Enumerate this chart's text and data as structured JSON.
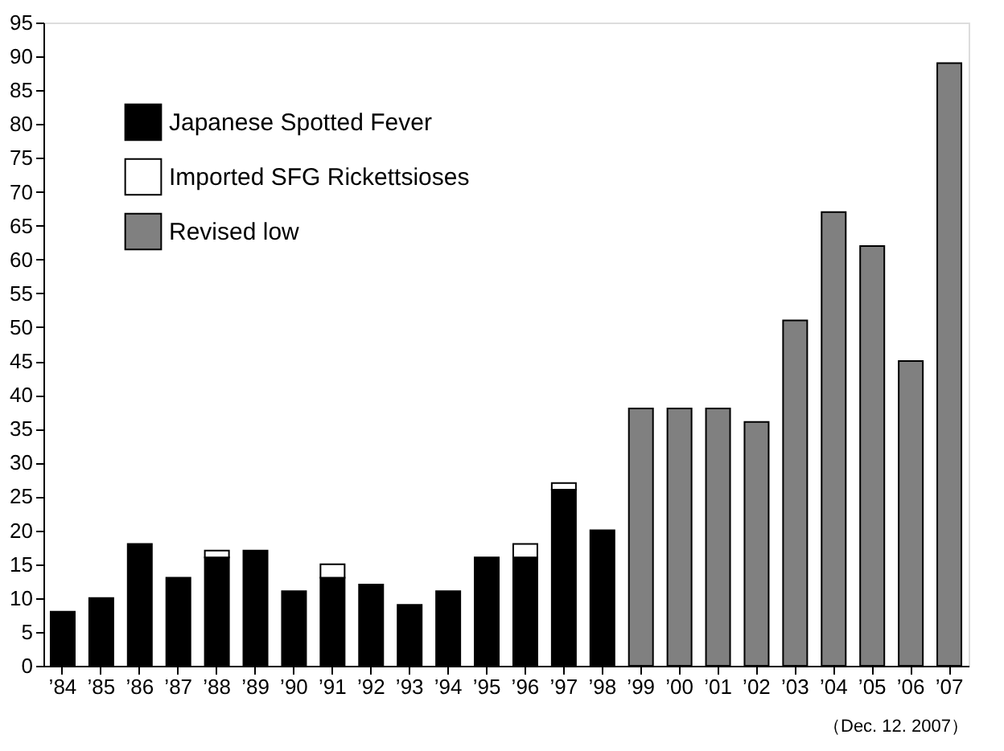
{
  "chart_data": {
    "type": "bar",
    "stacked": true,
    "categories": [
      "’84",
      "’85",
      "’86",
      "’87",
      "’88",
      "’89",
      "’90",
      "’91",
      "’92",
      "’93",
      "’94",
      "’95",
      "’96",
      "’97",
      "’98",
      "’99",
      "’00",
      "’01",
      "’02",
      "’03",
      "’04",
      "’05",
      "’06",
      "’07"
    ],
    "series": [
      {
        "name": "Japanese Spotted Fever",
        "color": "#000000",
        "values": [
          8,
          10,
          18,
          13,
          16,
          17,
          11,
          13,
          12,
          9,
          11,
          16,
          16,
          26,
          20,
          null,
          null,
          null,
          null,
          null,
          null,
          null,
          null,
          null
        ]
      },
      {
        "name": "Imported SFG Rickettsioses",
        "color": "#ffffff",
        "values": [
          null,
          null,
          null,
          null,
          1,
          null,
          null,
          2,
          null,
          null,
          null,
          null,
          2,
          1,
          null,
          null,
          null,
          null,
          null,
          null,
          null,
          null,
          null,
          null
        ]
      },
      {
        "name": "Revised low",
        "color": "#808080",
        "values": [
          null,
          null,
          null,
          null,
          null,
          null,
          null,
          null,
          null,
          null,
          null,
          null,
          null,
          null,
          null,
          38,
          38,
          38,
          36,
          51,
          67,
          62,
          45,
          89
        ]
      }
    ],
    "ylim": [
      0,
      95
    ],
    "yticks": [
      0,
      5,
      10,
      15,
      20,
      25,
      30,
      35,
      40,
      45,
      50,
      55,
      60,
      65,
      70,
      75,
      80,
      85,
      90,
      95
    ],
    "grid": false,
    "legend": "top left",
    "annotations": [
      "（Dec. 12. 2007）"
    ]
  }
}
